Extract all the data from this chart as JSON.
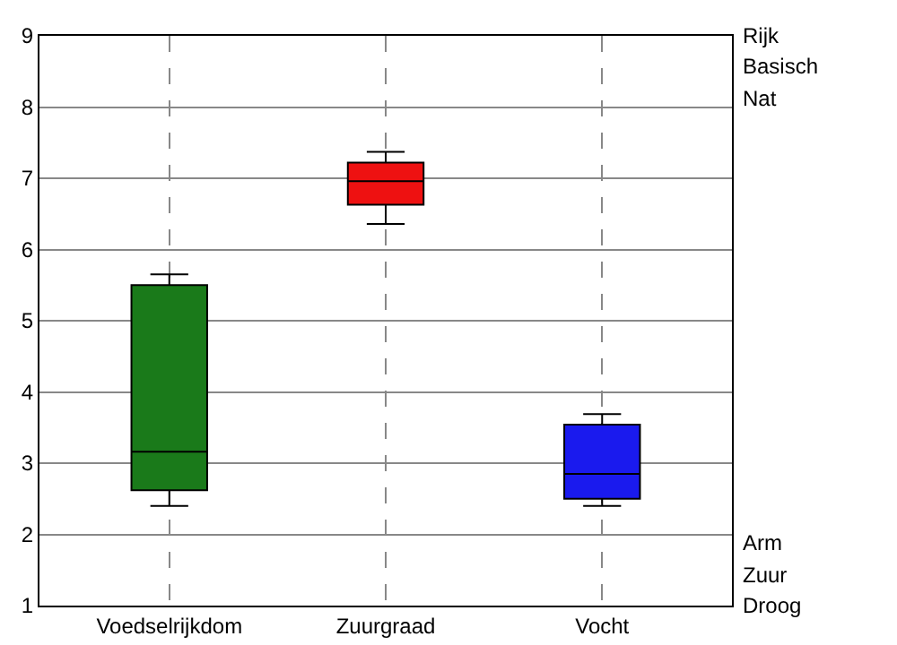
{
  "chart_data": {
    "type": "box",
    "categories": [
      "Voedselrijkdom",
      "Zuurgraad",
      "Vocht"
    ],
    "boxes": [
      {
        "low": 2.4,
        "q1": 2.62,
        "median": 3.16,
        "q3": 5.5,
        "high": 5.65
      },
      {
        "low": 6.36,
        "q1": 6.63,
        "median": 6.96,
        "q3": 7.22,
        "high": 7.37
      },
      {
        "low": 2.4,
        "q1": 2.5,
        "median": 2.85,
        "q3": 3.54,
        "high": 3.69
      }
    ],
    "colors": [
      "#1a7a1a",
      "#ee1111",
      "#1a1aee"
    ],
    "ylim": [
      1,
      9
    ],
    "yticks": [
      1,
      2,
      3,
      4,
      5,
      6,
      7,
      8,
      9
    ],
    "grid": true,
    "annotations": [
      "Rijk",
      "Basisch",
      "Nat",
      "Arm",
      "Zuur",
      "Droog"
    ]
  }
}
